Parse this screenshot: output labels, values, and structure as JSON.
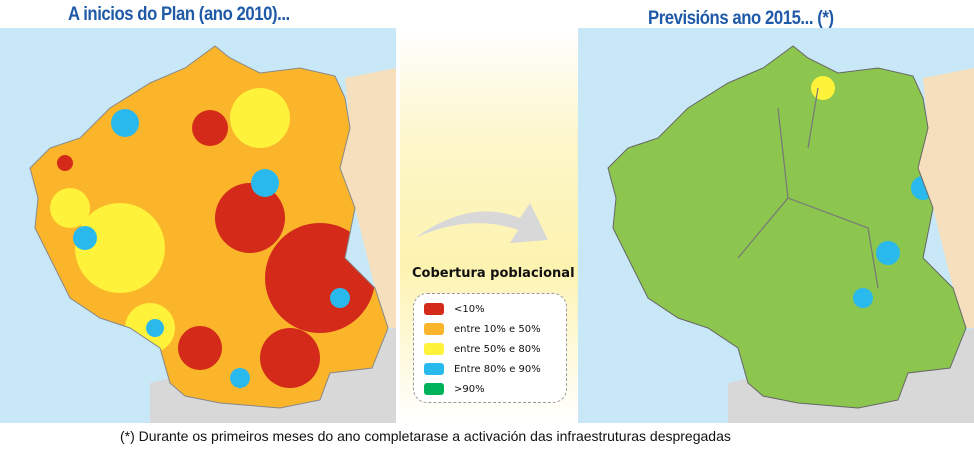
{
  "left_title": "A inicios do Plan (ano 2010)...",
  "right_title": "Previsións ano 2015... (*)",
  "legend": {
    "title": "Cobertura poblacional",
    "items": [
      {
        "label": "<10%",
        "color": "#d42a1a"
      },
      {
        "label": "entre 10% e 50%",
        "color": "#fbb52b"
      },
      {
        "label": "entre 50% e 80%",
        "color": "#fff23a"
      },
      {
        "label": "Entre 80% e 90%",
        "color": "#29b9ec"
      },
      {
        "label": ">90%",
        "color": "#00b25a"
      }
    ]
  },
  "footnote": "(*) Durante os primeiros meses do ano completarase a activación das infraestruturas despregadas"
}
